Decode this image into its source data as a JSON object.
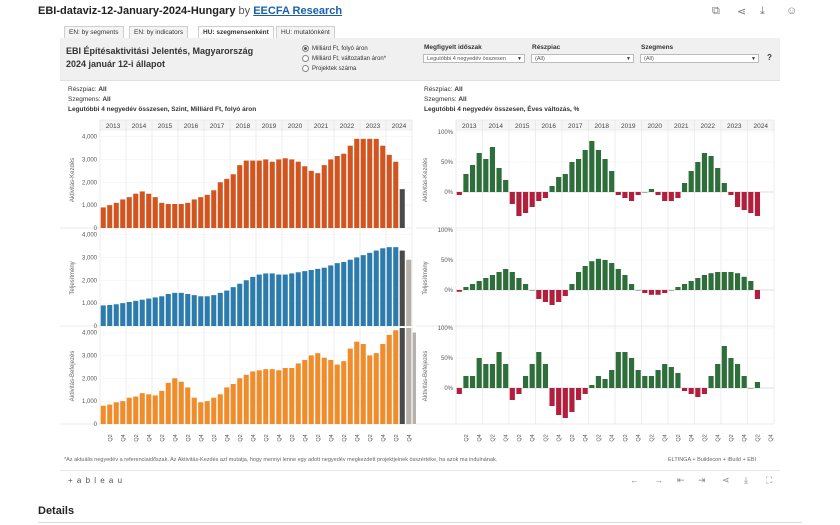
{
  "header": {
    "dashboard_title": "EBI-dataviz-12-January-2024-Hungary",
    "by": "by",
    "author": "EECFA Research"
  },
  "tabs": [
    {
      "label": "EN: by segments",
      "active": false
    },
    {
      "label": "EN: by indicators",
      "active": false
    },
    {
      "label": "HU: szegmensenként",
      "active": true
    },
    {
      "label": "HU: mutatónként",
      "active": false
    }
  ],
  "filters": {
    "title_line1": "EBI Építésaktivitási Jelentés, Magyarország",
    "title_line2": "2024 január 12-i állapot",
    "radios": [
      {
        "label": "Milliárd Ft, folyó áron",
        "selected": true
      },
      {
        "label": "Milliárd Ft, változatlan áron*",
        "selected": false
      },
      {
        "label": "Projektek száma",
        "selected": false
      }
    ],
    "period_label": "Megfigyelt időszak",
    "period_value": "Legutóbbi 4 negyedév összesen",
    "subsector_label": "Részpiac",
    "subsector_value": "(All)",
    "segment_label": "Szegmens",
    "segment_value": "(All)",
    "help": "?"
  },
  "left_meta": {
    "subsector_key": "Részpiac:",
    "subsector_val": "All",
    "segment_key": "Szegmens:",
    "segment_val": "All",
    "caption": "Legutóbbi 4 negyedév összesen, Szint, Milliárd Ft, folyó áron"
  },
  "right_meta": {
    "subsector_key": "Részpiac:",
    "subsector_val": "All",
    "segment_key": "Szegmens:",
    "segment_val": "All",
    "caption": "Legutóbbi 4 negyedév összesen, Éves változás, %"
  },
  "note": "*Az aktuális negyedév a referenciaidőszak. Az Aktivitás-Kezdés azt mutatja, hogy mennyi lenne egy adott negyedév megkezdett projektjeinek összértéke, ha azok ma indulnának.",
  "credit": "ELTINGA + Buildecon + iBuild + EBI",
  "footer": {
    "logo": "+ a b l e a u"
  },
  "details": "Details",
  "colors": {
    "orange_dark": "#d2541e",
    "blue": "#2b7bac",
    "orange": "#f08c2a",
    "projection_dark": "#4a4a4a",
    "projection_light": "#b8b0aa",
    "green": "#2e6e3a",
    "red": "#b21f3c"
  },
  "chart_data": [
    {
      "type": "bar",
      "name": "levels",
      "years": [
        "2013",
        "2014",
        "2015",
        "2016",
        "2017",
        "2018",
        "2019",
        "2020",
        "2021",
        "2022",
        "2023",
        "2024"
      ],
      "quarter_labels": [
        "Q2",
        "Q4"
      ],
      "y_ticks": [
        0,
        1000,
        2000,
        3000,
        4000
      ],
      "y_tick_labels": [
        "0",
        "1,000",
        "2,000",
        "3,000",
        "4,000"
      ],
      "ylim": [
        0,
        4200
      ],
      "rows": [
        {
          "label": "Aktivitás-Kezdés",
          "color_key": "orange_dark",
          "values": [
            900,
            1000,
            1100,
            1250,
            1350,
            1500,
            1600,
            1500,
            1350,
            1100,
            1050,
            1050,
            1050,
            1100,
            1250,
            1350,
            1450,
            1650,
            2000,
            2150,
            2350,
            2750,
            2950,
            2950,
            2950,
            3000,
            2900,
            3000,
            3050,
            3000,
            2900,
            2700,
            2500,
            2400,
            2750,
            3000,
            3150,
            3250,
            3600,
            3900,
            3900,
            3900,
            3900,
            3600,
            3200,
            2900
          ],
          "projection": [
            1700
          ],
          "projection_shade": [
            "projection_dark"
          ]
        },
        {
          "label": "Teljesítmény",
          "color_key": "blue",
          "values": [
            900,
            920,
            950,
            1000,
            1050,
            1100,
            1150,
            1200,
            1250,
            1300,
            1400,
            1450,
            1450,
            1400,
            1350,
            1300,
            1300,
            1350,
            1450,
            1550,
            1700,
            1850,
            2000,
            2150,
            2250,
            2300,
            2300,
            2250,
            2250,
            2300,
            2350,
            2400,
            2450,
            2500,
            2550,
            2650,
            2750,
            2800,
            2900,
            3000,
            3100,
            3200,
            3300,
            3400,
            3450,
            3450
          ],
          "projection": [
            3300,
            2900
          ],
          "projection_shade": [
            "projection_dark",
            "projection_light"
          ]
        },
        {
          "label": "Aktivitás-Befejezés",
          "color_key": "orange",
          "values": [
            800,
            850,
            950,
            1000,
            1150,
            1200,
            1350,
            1300,
            1250,
            1450,
            1800,
            2000,
            1850,
            1600,
            1150,
            950,
            1000,
            1150,
            1300,
            1600,
            1750,
            2000,
            2150,
            2300,
            2350,
            2400,
            2400,
            2350,
            2450,
            2450,
            2650,
            2800,
            3000,
            3100,
            2900,
            2800,
            2600,
            2750,
            3300,
            3600,
            3500,
            3000,
            3100,
            3500,
            3900,
            4100
          ],
          "projection": [
            4200,
            4200,
            4000,
            3900,
            3600
          ],
          "projection_shade": [
            "projection_dark",
            "projection_light",
            "projection_light",
            "projection_light",
            "projection_light"
          ]
        }
      ]
    },
    {
      "type": "bar",
      "name": "yoy_change_percent",
      "years": [
        "2013",
        "2014",
        "2015",
        "2016",
        "2017",
        "2018",
        "2019",
        "2020",
        "2021",
        "2022",
        "2023",
        "2024"
      ],
      "quarter_labels": [
        "Q2",
        "Q4"
      ],
      "y_ticks": [
        0,
        50,
        100
      ],
      "y_tick_labels": [
        "0%",
        "50%",
        "100%"
      ],
      "ylim": [
        -60,
        100
      ],
      "rows": [
        {
          "label": "Aktivitás-Kezdés",
          "values": [
            -5,
            30,
            45,
            65,
            55,
            75,
            40,
            20,
            -20,
            -40,
            -35,
            -25,
            -15,
            -10,
            10,
            25,
            30,
            50,
            55,
            70,
            85,
            70,
            55,
            35,
            -5,
            -10,
            -15,
            -5,
            0,
            5,
            -5,
            -15,
            -15,
            -10,
            15,
            35,
            50,
            65,
            60,
            40,
            15,
            -5,
            -25,
            -30,
            -35,
            -40
          ]
        },
        {
          "label": "Teljesítmény",
          "values": [
            -3,
            5,
            10,
            15,
            20,
            25,
            30,
            35,
            30,
            20,
            10,
            0,
            -15,
            -20,
            -25,
            -20,
            -10,
            10,
            30,
            40,
            48,
            52,
            50,
            45,
            35,
            25,
            10,
            0,
            -5,
            -8,
            -8,
            -5,
            0,
            5,
            10,
            15,
            20,
            25,
            28,
            30,
            30,
            30,
            28,
            22,
            15,
            -15
          ]
        },
        {
          "label": "Aktivitás-Befejezés",
          "values": [
            -10,
            20,
            20,
            50,
            40,
            40,
            60,
            40,
            -20,
            -10,
            20,
            40,
            60,
            40,
            -30,
            -45,
            -50,
            -40,
            -20,
            -10,
            5,
            20,
            15,
            30,
            60,
            60,
            50,
            30,
            20,
            20,
            30,
            40,
            35,
            25,
            -5,
            -10,
            -15,
            -10,
            20,
            40,
            70,
            50,
            40,
            20,
            0,
            10
          ]
        }
      ]
    }
  ]
}
